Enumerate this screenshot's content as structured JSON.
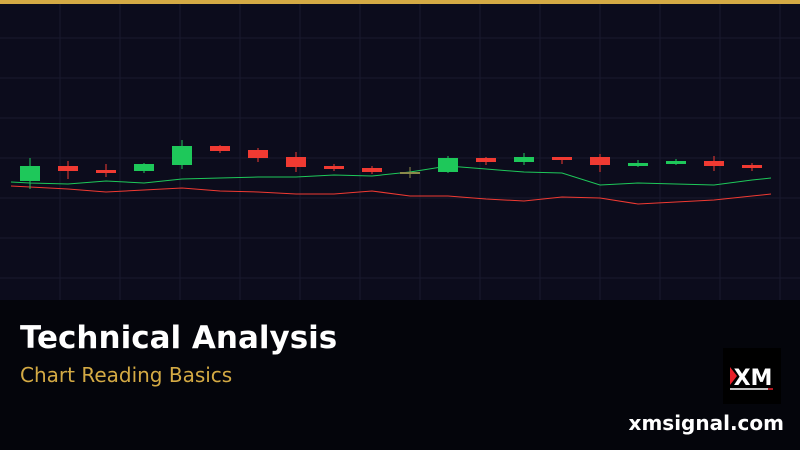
{
  "colors": {
    "accent": "#d4aa44",
    "up": "#1ec85a",
    "down": "#f03a32",
    "neutral": "#8a8a4a",
    "grid": "#1a1a2e"
  },
  "title": "Technical Analysis",
  "subtitle": "Chart Reading Basics",
  "logo_text": "XM",
  "site": "xmsignal.com",
  "chart_data": {
    "type": "candlestick",
    "grid": true,
    "candles": [
      {
        "o": 119,
        "h": 142,
        "l": 111,
        "c": 134
      },
      {
        "o": 134,
        "h": 139,
        "l": 121,
        "c": 129
      },
      {
        "o": 130,
        "h": 136,
        "l": 123,
        "c": 127
      },
      {
        "o": 129,
        "h": 137,
        "l": 127,
        "c": 136
      },
      {
        "o": 135,
        "h": 160,
        "l": 131,
        "c": 154
      },
      {
        "o": 154,
        "h": 155,
        "l": 147,
        "c": 149
      },
      {
        "o": 150,
        "h": 152,
        "l": 138,
        "c": 142
      },
      {
        "o": 143,
        "h": 148,
        "l": 128,
        "c": 133
      },
      {
        "o": 134,
        "h": 136,
        "l": 129,
        "c": 131
      },
      {
        "o": 132,
        "h": 134,
        "l": 126,
        "c": 128
      },
      {
        "o": 128,
        "h": 133,
        "l": 122,
        "c": 128
      },
      {
        "o": 128,
        "h": 144,
        "l": 127,
        "c": 142
      },
      {
        "o": 142,
        "h": 143,
        "l": 135,
        "c": 138
      },
      {
        "o": 138,
        "h": 147,
        "l": 135,
        "c": 143
      },
      {
        "o": 143,
        "h": 143,
        "l": 136,
        "c": 140
      },
      {
        "o": 143,
        "h": 146,
        "l": 128,
        "c": 135
      },
      {
        "o": 134,
        "h": 140,
        "l": 133,
        "c": 137
      },
      {
        "o": 136,
        "h": 141,
        "l": 135,
        "c": 139
      },
      {
        "o": 139,
        "h": 144,
        "l": 129,
        "c": 134
      },
      {
        "o": 135,
        "h": 137,
        "l": 129,
        "c": 132
      }
    ],
    "series": [
      {
        "color": "#1ec85a",
        "values": [
          117,
          116,
          119,
          117,
          121,
          122,
          123,
          123,
          125,
          124,
          128,
          134,
          131,
          128,
          127,
          115,
          117,
          116,
          115,
          120
        ]
      },
      {
        "color": "#f03a32",
        "values": [
          113,
          111,
          108,
          110,
          112,
          109,
          108,
          106,
          106,
          109,
          104,
          104,
          101,
          99,
          103,
          102,
          96,
          98,
          100,
          104
        ]
      }
    ]
  }
}
